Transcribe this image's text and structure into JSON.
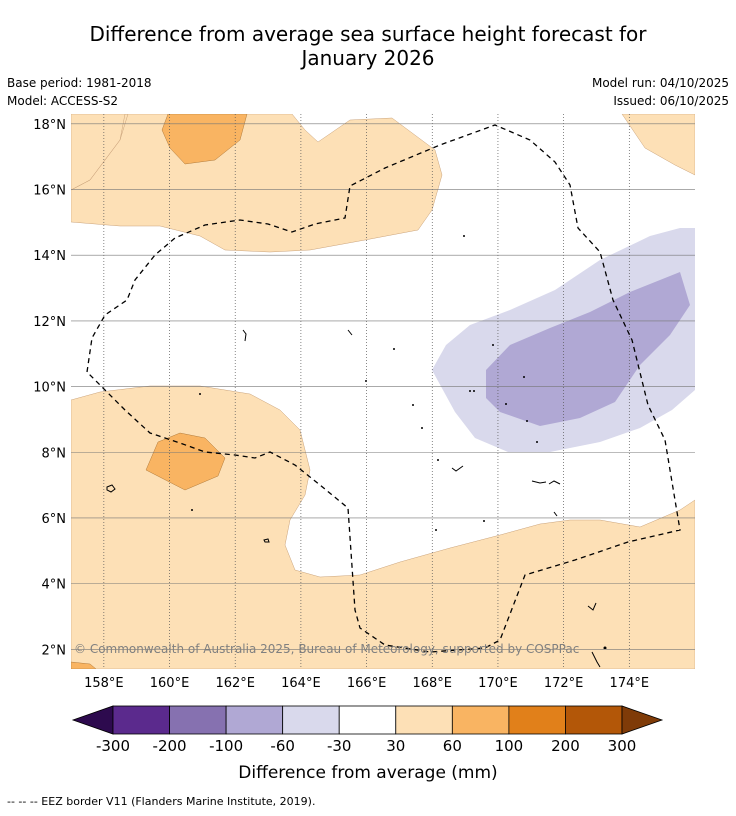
{
  "title_line1": "Difference from average sea surface height forecast for",
  "title_line2": "January 2026",
  "meta_left": {
    "base_period": "Base period: 1981-2018",
    "model": "Model: ACCESS-S2"
  },
  "meta_right": {
    "model_run": "Model run: 04/10/2025",
    "issued": "Issued: 06/10/2025"
  },
  "map": {
    "lon_labels": [
      "158°E",
      "160°E",
      "162°E",
      "164°E",
      "166°E",
      "168°E",
      "170°E",
      "172°E",
      "174°E"
    ],
    "lat_labels": [
      "18°N",
      "16°N",
      "14°N",
      "12°N",
      "10°N",
      "8°N",
      "6°N",
      "4°N",
      "2°N"
    ],
    "lon_range": [
      157,
      176
    ],
    "lat_range": [
      1.4,
      18.3
    ],
    "copyright": "© Commonwealth of Australia 2025, Bureau of Meteorology, supported by COSPPac"
  },
  "colorbar": {
    "ticks": [
      "-300",
      "-200",
      "-100",
      "-60",
      "-30",
      "30",
      "60",
      "100",
      "200",
      "300"
    ],
    "colors": [
      "#5b2a8d",
      "#8671b0",
      "#b0a8d4",
      "#d9d9ec",
      "#ffffff",
      "#fde0b6",
      "#f9b462",
      "#e1801a",
      "#b35708"
    ],
    "under_color": "#2d0a4e",
    "over_color": "#7f3b08",
    "label": "Difference from average (mm)"
  },
  "footer": "--  --  -- EEZ border V11 (Flanders Marine Institute, 2019)."
}
